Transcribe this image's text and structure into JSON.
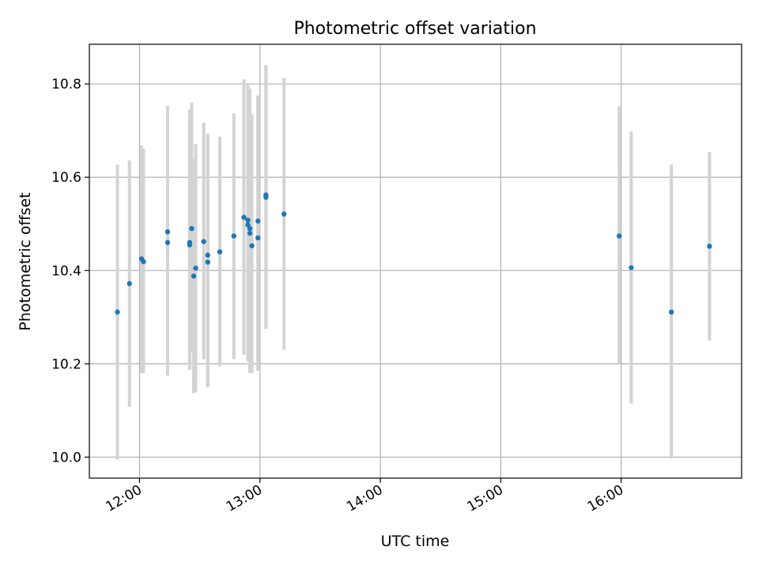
{
  "chart_data": {
    "type": "scatter",
    "title": "Photometric offset variation",
    "xlabel": "UTC time",
    "ylabel": "Photometric offset",
    "x_unit": "time (HH:MM UTC)",
    "xlim": [
      "11:35",
      "17:00"
    ],
    "ylim": [
      9.955,
      10.885
    ],
    "x_ticks": [
      "12:00",
      "13:00",
      "14:00",
      "15:00",
      "16:00"
    ],
    "y_ticks": [
      "10.0",
      "10.2",
      "10.4",
      "10.6",
      "10.8"
    ],
    "grid": true,
    "points": [
      {
        "x": "11:49",
        "y": 10.311,
        "low": 9.995,
        "high": 10.627
      },
      {
        "x": "11:55",
        "y": 10.372,
        "low": 10.108,
        "high": 10.636
      },
      {
        "x": "12:01",
        "y": 10.425,
        "low": 10.18,
        "high": 10.668
      },
      {
        "x": "12:02",
        "y": 10.419,
        "low": 10.18,
        "high": 10.661
      },
      {
        "x": "12:14",
        "y": 10.46,
        "low": 10.175,
        "high": 10.753
      },
      {
        "x": "12:14",
        "y": 10.483,
        "low": 10.215,
        "high": 10.752
      },
      {
        "x": "12:25",
        "y": 10.46,
        "low": 10.187,
        "high": 10.725
      },
      {
        "x": "12:25",
        "y": 10.455,
        "low": 10.195,
        "high": 10.745
      },
      {
        "x": "12:26",
        "y": 10.49,
        "low": 10.225,
        "high": 10.76
      },
      {
        "x": "12:27",
        "y": 10.388,
        "low": 10.137,
        "high": 10.64
      },
      {
        "x": "12:28",
        "y": 10.405,
        "low": 10.14,
        "high": 10.671
      },
      {
        "x": "12:32",
        "y": 10.462,
        "low": 10.21,
        "high": 10.717
      },
      {
        "x": "12:34",
        "y": 10.433,
        "low": 10.15,
        "high": 10.693
      },
      {
        "x": "12:34",
        "y": 10.418,
        "low": 10.15,
        "high": 10.69
      },
      {
        "x": "12:40",
        "y": 10.44,
        "low": 10.195,
        "high": 10.687
      },
      {
        "x": "12:47",
        "y": 10.474,
        "low": 10.21,
        "high": 10.737
      },
      {
        "x": "12:52",
        "y": 10.514,
        "low": 10.22,
        "high": 10.81
      },
      {
        "x": "12:54",
        "y": 10.508,
        "low": 10.21,
        "high": 10.8
      },
      {
        "x": "12:54",
        "y": 10.498,
        "low": 10.205,
        "high": 10.79
      },
      {
        "x": "12:55",
        "y": 10.49,
        "low": 10.19,
        "high": 10.79
      },
      {
        "x": "12:55",
        "y": 10.48,
        "low": 10.18,
        "high": 10.77
      },
      {
        "x": "12:56",
        "y": 10.453,
        "low": 10.18,
        "high": 10.735
      },
      {
        "x": "12:59",
        "y": 10.506,
        "low": 10.19,
        "high": 10.77
      },
      {
        "x": "12:59",
        "y": 10.47,
        "low": 10.185,
        "high": 10.775
      },
      {
        "x": "13:03",
        "y": 10.562,
        "low": 10.275,
        "high": 10.84
      },
      {
        "x": "13:03",
        "y": 10.557,
        "low": 10.275,
        "high": 10.84
      },
      {
        "x": "13:12",
        "y": 10.521,
        "low": 10.23,
        "high": 10.813
      },
      {
        "x": "15:59",
        "y": 10.474,
        "low": 10.2,
        "high": 10.752
      },
      {
        "x": "16:05",
        "y": 10.406,
        "low": 10.115,
        "high": 10.698
      },
      {
        "x": "16:25",
        "y": 10.311,
        "low": 9.997,
        "high": 10.627
      },
      {
        "x": "16:44",
        "y": 10.452,
        "low": 10.25,
        "high": 10.654
      }
    ]
  }
}
